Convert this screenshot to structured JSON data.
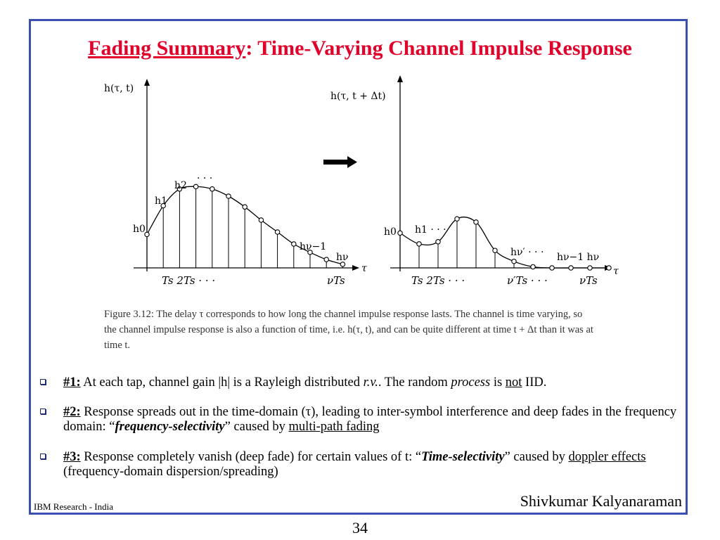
{
  "title": {
    "underlined": "Fading Summary",
    "rest": ": Time-Varying Channel Impulse Response"
  },
  "figure": {
    "left_plot": {
      "ylabel": "h(τ, t)",
      "xaxis_symbol": "τ",
      "tap_labels": [
        "h0",
        "h1",
        "h2",
        "· · ·",
        "hν−1",
        "hν"
      ],
      "tick_labels": [
        "Ts 2Ts  · · ·",
        "νTs"
      ],
      "tap_values": [
        0.28,
        0.52,
        0.66,
        0.68,
        0.66,
        0.6,
        0.51,
        0.4,
        0.3,
        0.2,
        0.13,
        0.07,
        0.03
      ]
    },
    "right_plot": {
      "ylabel": "h(τ, t + Δt)",
      "xaxis_symbol": "τ",
      "tap_labels": [
        "h0",
        "h1 · · ·",
        "hν′ · · ·",
        "hν−1 hν"
      ],
      "tick_labels": [
        "Ts 2Ts  · · ·",
        "ν′Ts · · ·",
        "νTs"
      ],
      "tap_values": [
        0.32,
        0.22,
        0.24,
        0.45,
        0.42,
        0.16,
        0.06,
        0.01,
        0.0,
        0.0,
        0.0,
        0.0
      ]
    },
    "caption": "Figure 3.12: The delay τ corresponds to how long the channel impulse response lasts. The channel is time varying, so the channel impulse response is also a function of time, i.e. h(τ, t), and can be quite different at time t + Δt than it was at time t."
  },
  "bullets": [
    {
      "num": "#1:",
      "t1": " At each tap, channel gain |h| is a Rayleigh distributed ",
      "em1": "r.v.",
      "t2": ". The random ",
      "em2": "process",
      "t3": " is ",
      "ul": "not",
      "t4": " IID."
    },
    {
      "num": "#2:",
      "t1": " Response spreads out in the time-domain (τ), leading to inter-symbol interference and deep fades in the frequency domain: “",
      "em": "frequency-selectivity",
      "t2": "” caused by ",
      "ul": "multi-path fading"
    },
    {
      "num": "#3:",
      "t1": " Response completely vanish (deep fade) for certain values of t: “",
      "em": "Time-selectivity",
      "t2": "” caused by ",
      "ul": "doppler effects",
      "t3": " (frequency-domain dispersion/spreading)"
    }
  ],
  "footer": {
    "left": "IBM Research - India",
    "right": "Shivkumar Kalyanaraman",
    "page": "34"
  },
  "colors": {
    "title": "#e0002a",
    "frame": "#3b4fb0"
  }
}
